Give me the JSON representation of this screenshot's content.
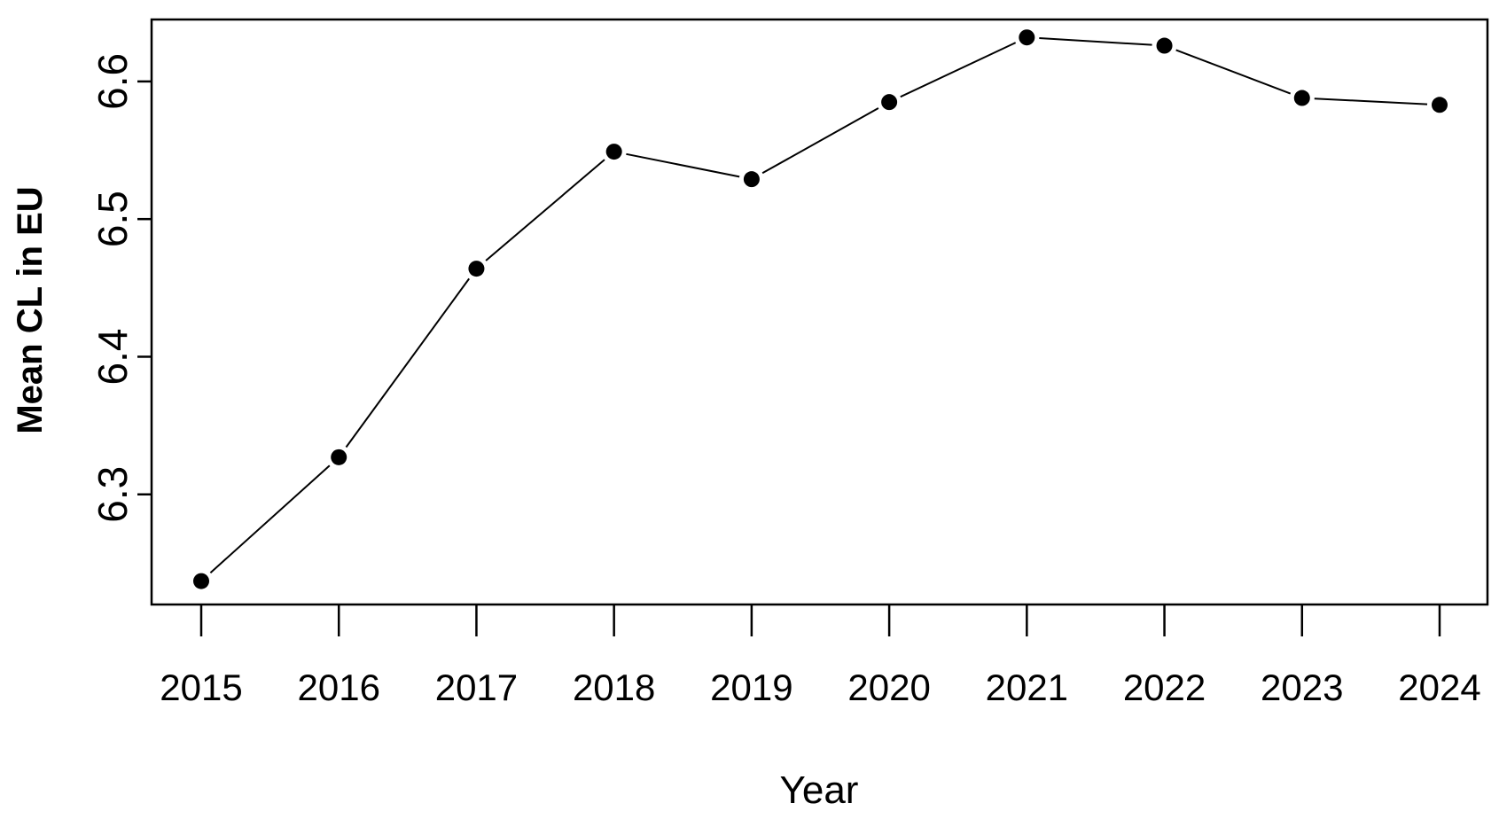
{
  "chart_data": {
    "type": "line",
    "x": [
      "2015",
      "2016",
      "2017",
      "2018",
      "2019",
      "2020",
      "2021",
      "2022",
      "2023",
      "2024"
    ],
    "series": [
      {
        "values": [
          6.237,
          6.327,
          6.464,
          6.549,
          6.529,
          6.585,
          6.632,
          6.626,
          6.588,
          6.583
        ]
      }
    ],
    "title": "",
    "xlabel": "Year",
    "ylabel": "Mean CL in EU",
    "ylim": [
      6.22,
      6.645
    ],
    "yticks": [
      6.3,
      6.4,
      6.5,
      6.6
    ],
    "ytick_labels": [
      "6.3",
      "6.4",
      "6.5",
      "6.6"
    ],
    "grid": false,
    "marker": "filled-circle",
    "line_color": "#000000",
    "marker_color": "#000000"
  }
}
